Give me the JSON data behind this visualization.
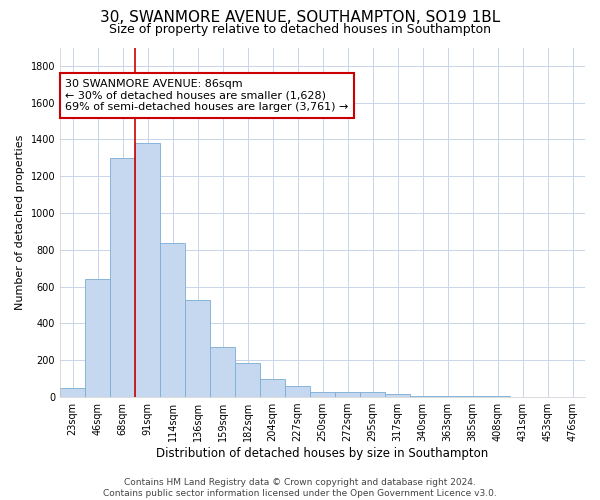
{
  "title": "30, SWANMORE AVENUE, SOUTHAMPTON, SO19 1BL",
  "subtitle": "Size of property relative to detached houses in Southampton",
  "xlabel": "Distribution of detached houses by size in Southampton",
  "ylabel": "Number of detached properties",
  "categories": [
    "23sqm",
    "46sqm",
    "68sqm",
    "91sqm",
    "114sqm",
    "136sqm",
    "159sqm",
    "182sqm",
    "204sqm",
    "227sqm",
    "250sqm",
    "272sqm",
    "295sqm",
    "317sqm",
    "340sqm",
    "363sqm",
    "385sqm",
    "408sqm",
    "431sqm",
    "453sqm",
    "476sqm"
  ],
  "values": [
    50,
    640,
    1300,
    1380,
    840,
    530,
    270,
    185,
    100,
    60,
    30,
    30,
    25,
    15,
    5,
    5,
    5,
    5,
    2,
    2,
    2
  ],
  "bar_color": "#c5d8ef",
  "bar_edge_color": "#7aadd4",
  "vline_color": "#cc0000",
  "vline_x_index": 3,
  "ylim": [
    0,
    1900
  ],
  "yticks": [
    0,
    200,
    400,
    600,
    800,
    1000,
    1200,
    1400,
    1600,
    1800
  ],
  "annotation_line1": "30 SWANMORE AVENUE: 86sqm",
  "annotation_line2": "← 30% of detached houses are smaller (1,628)",
  "annotation_line3": "69% of semi-detached houses are larger (3,761) →",
  "annotation_box_color": "#ffffff",
  "annotation_box_edgecolor": "#cc0000",
  "footer_line1": "Contains HM Land Registry data © Crown copyright and database right 2024.",
  "footer_line2": "Contains public sector information licensed under the Open Government Licence v3.0.",
  "background_color": "#ffffff",
  "grid_color": "#c8d4e8",
  "title_fontsize": 11,
  "subtitle_fontsize": 9,
  "xlabel_fontsize": 8.5,
  "ylabel_fontsize": 8,
  "tick_fontsize": 7,
  "footer_fontsize": 6.5,
  "annotation_fontsize": 8
}
